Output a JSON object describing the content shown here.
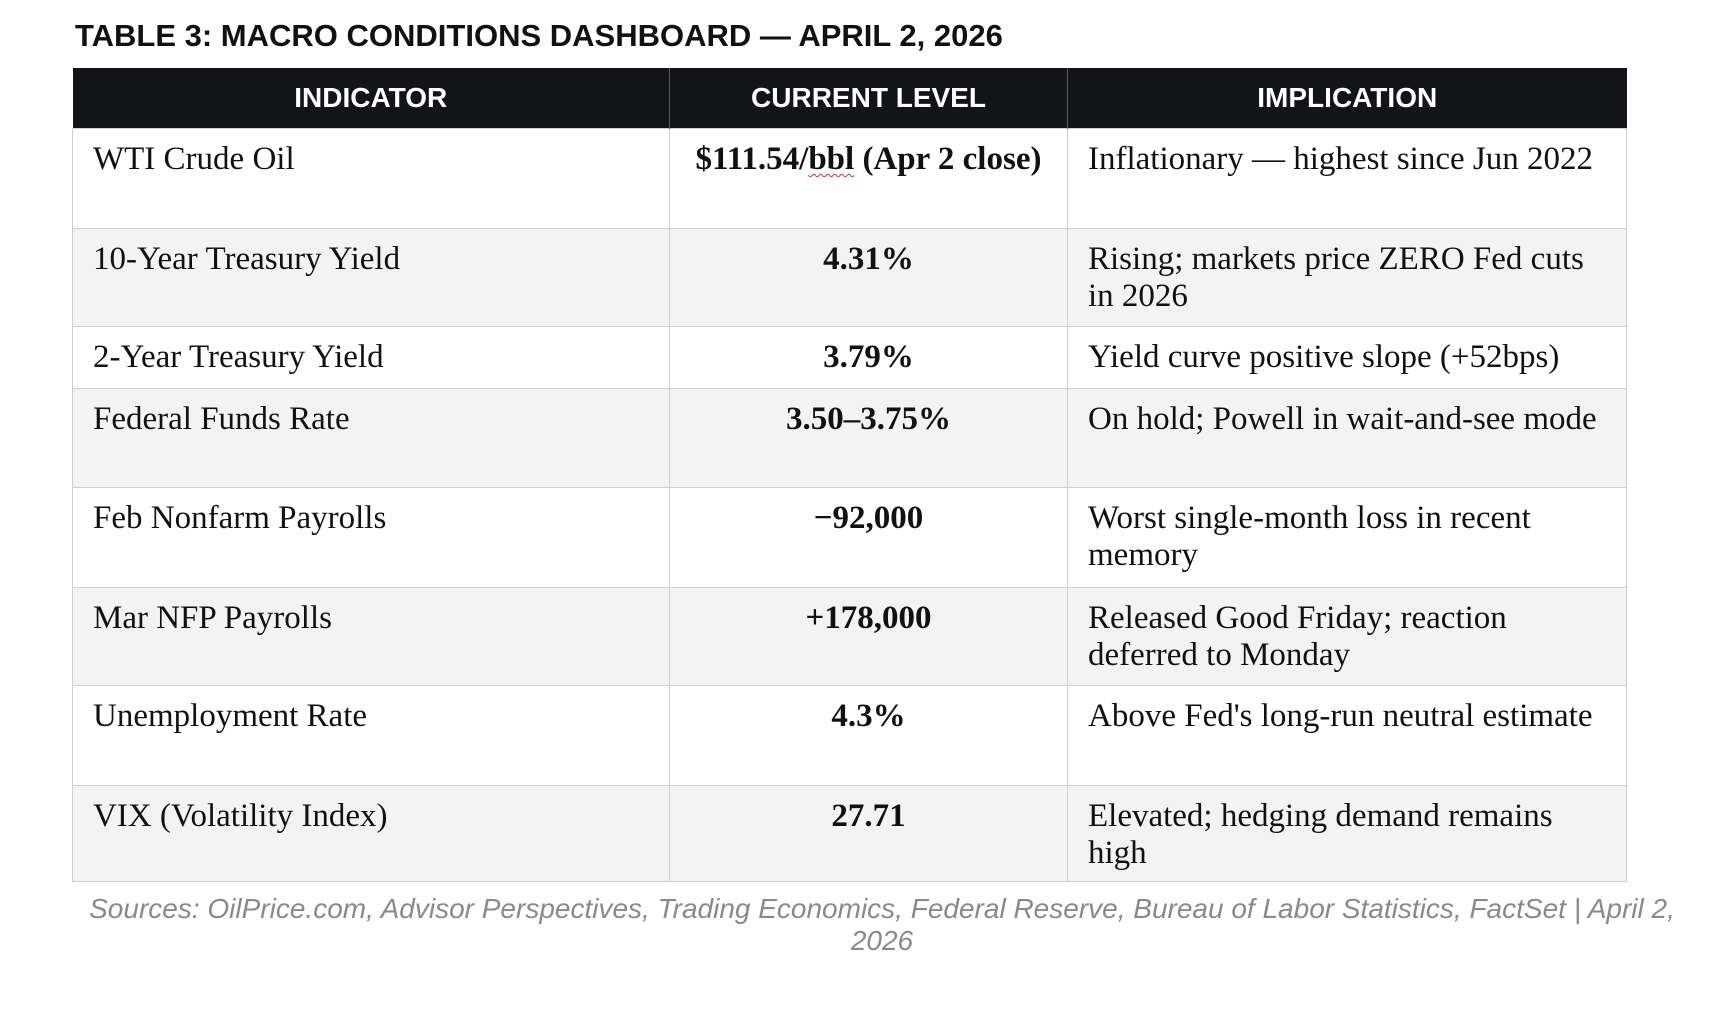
{
  "title": "TABLE 3: MACRO CONDITIONS DASHBOARD — APRIL 2, 2026",
  "table": {
    "headers": [
      "INDICATOR",
      "CURRENT LEVEL",
      "IMPLICATION"
    ],
    "rows": [
      {
        "indicator": "WTI Crude Oil",
        "level_pre": "$111.54/",
        "level_flagged": "bbl",
        "level_post": " (Apr 2 close)",
        "implication": "Inflationary — highest since Jun 2022"
      },
      {
        "indicator": "10-Year Treasury Yield",
        "level": "4.31%",
        "implication": "Rising; markets price ZERO Fed cuts in 2026"
      },
      {
        "indicator": "2-Year Treasury Yield",
        "level": "3.79%",
        "implication": "Yield curve positive slope (+52bps)"
      },
      {
        "indicator": "Federal Funds Rate",
        "level": "3.50–3.75%",
        "implication": "On hold; Powell in wait-and-see mode"
      },
      {
        "indicator": "Feb Nonfarm Payrolls",
        "level": "−92,000",
        "implication": "Worst single-month loss in recent memory"
      },
      {
        "indicator": "Mar NFP Payrolls",
        "level": "+178,000",
        "implication": "Released Good Friday; reaction deferred to Monday"
      },
      {
        "indicator": "Unemployment Rate",
        "level": "4.3%",
        "implication": "Above Fed's long-run neutral estimate"
      },
      {
        "indicator": "VIX (Volatility Index)",
        "level": "27.71",
        "implication": "Elevated; hedging demand remains high"
      }
    ]
  },
  "sources": "Sources: OilPrice.com, Advisor Perspectives, Trading Economics, Federal Reserve, Bureau of Labor Statistics, FactSet | April 2, 2026",
  "colors": {
    "header_bg": "#121417",
    "header_text": "#ffffff",
    "alt_row_bg": "#f3f3f3",
    "border": "#cfcfcf",
    "sources_text": "#8a8a8a",
    "spellcheck_underline": "#d0342c"
  }
}
